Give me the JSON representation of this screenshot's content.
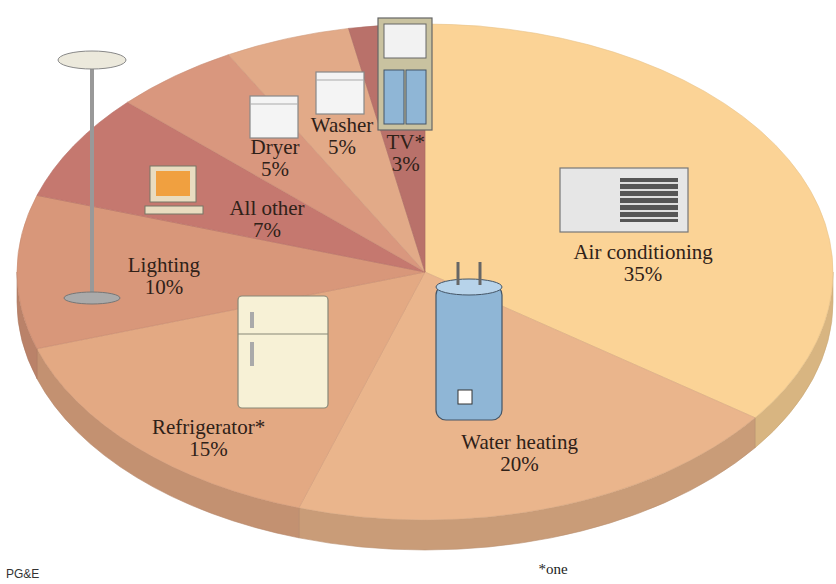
{
  "chart_data": {
    "type": "pie",
    "categories": [
      "Air conditioning",
      "Water heating",
      "Refrigerator*",
      "Lighting",
      "All other",
      "Dryer",
      "Washer",
      "TV*"
    ],
    "values": [
      35,
      20,
      15,
      10,
      7,
      5,
      5,
      3
    ],
    "value_labels": [
      "35%",
      "20%",
      "15%",
      "10%",
      "7%",
      "5%",
      "5%",
      "3%"
    ],
    "colors": [
      "#fbd396",
      "#eab58c",
      "#e3a983",
      "#d8977a",
      "#c5786f",
      "#d9977e",
      "#e2aa88",
      "#b9716a"
    ],
    "data_labels": true,
    "footnote": "*one",
    "source": "PG&E"
  }
}
